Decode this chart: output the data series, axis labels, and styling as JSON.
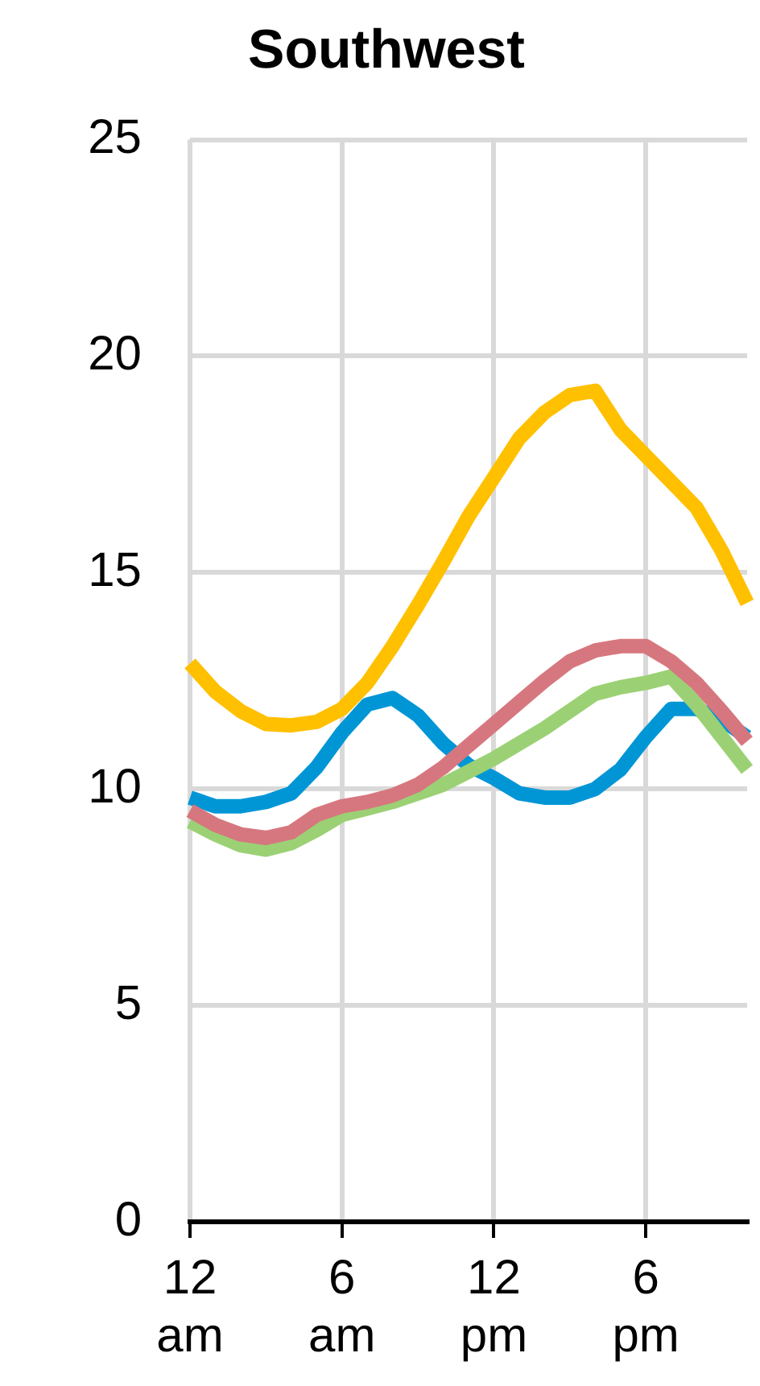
{
  "chart_data": {
    "type": "line",
    "title": "Southwest",
    "categories": [
      "12 am",
      null,
      null,
      null,
      null,
      null,
      "6 am",
      null,
      null,
      null,
      null,
      null,
      "12 pm",
      null,
      null,
      null,
      null,
      null,
      "6 pm",
      null,
      null,
      null,
      null
    ],
    "series": [
      {
        "color": "#ffc000",
        "values": [
          12.9,
          12.25,
          11.8,
          11.5,
          11.47,
          11.55,
          11.85,
          12.45,
          13.3,
          14.25,
          15.25,
          16.3,
          17.2,
          18.1,
          18.7,
          19.1,
          19.2,
          18.3,
          17.7,
          17.1,
          16.5,
          15.5,
          14.3
        ]
      },
      {
        "color": "#d6777f",
        "values": [
          9.5,
          9.17,
          8.95,
          8.87,
          9.0,
          9.4,
          9.6,
          9.7,
          9.85,
          10.1,
          10.5,
          11.0,
          11.5,
          12.0,
          12.5,
          12.95,
          13.2,
          13.3,
          13.3,
          12.95,
          12.45,
          11.8,
          11.1
        ]
      },
      {
        "color": "#9bd174",
        "values": [
          9.25,
          8.95,
          8.7,
          8.6,
          8.75,
          9.05,
          9.4,
          9.55,
          9.7,
          9.9,
          10.1,
          10.4,
          10.7,
          11.05,
          11.4,
          11.8,
          12.2,
          12.35,
          12.45,
          12.6,
          11.95,
          11.2,
          10.45
        ]
      },
      {
        "color": "#0096d6",
        "values": [
          9.8,
          9.6,
          9.6,
          9.7,
          9.9,
          10.5,
          11.3,
          11.95,
          12.1,
          11.7,
          11.05,
          10.55,
          10.25,
          9.9,
          9.8,
          9.8,
          10.0,
          10.45,
          11.2,
          11.85,
          11.85,
          11.6,
          11.2
        ]
      }
    ],
    "ylim": [
      0,
      25
    ],
    "yticks": [
      0,
      5,
      10,
      15,
      20,
      25
    ],
    "grid": true,
    "legend": false,
    "marker": "none",
    "line_style": "solid"
  }
}
